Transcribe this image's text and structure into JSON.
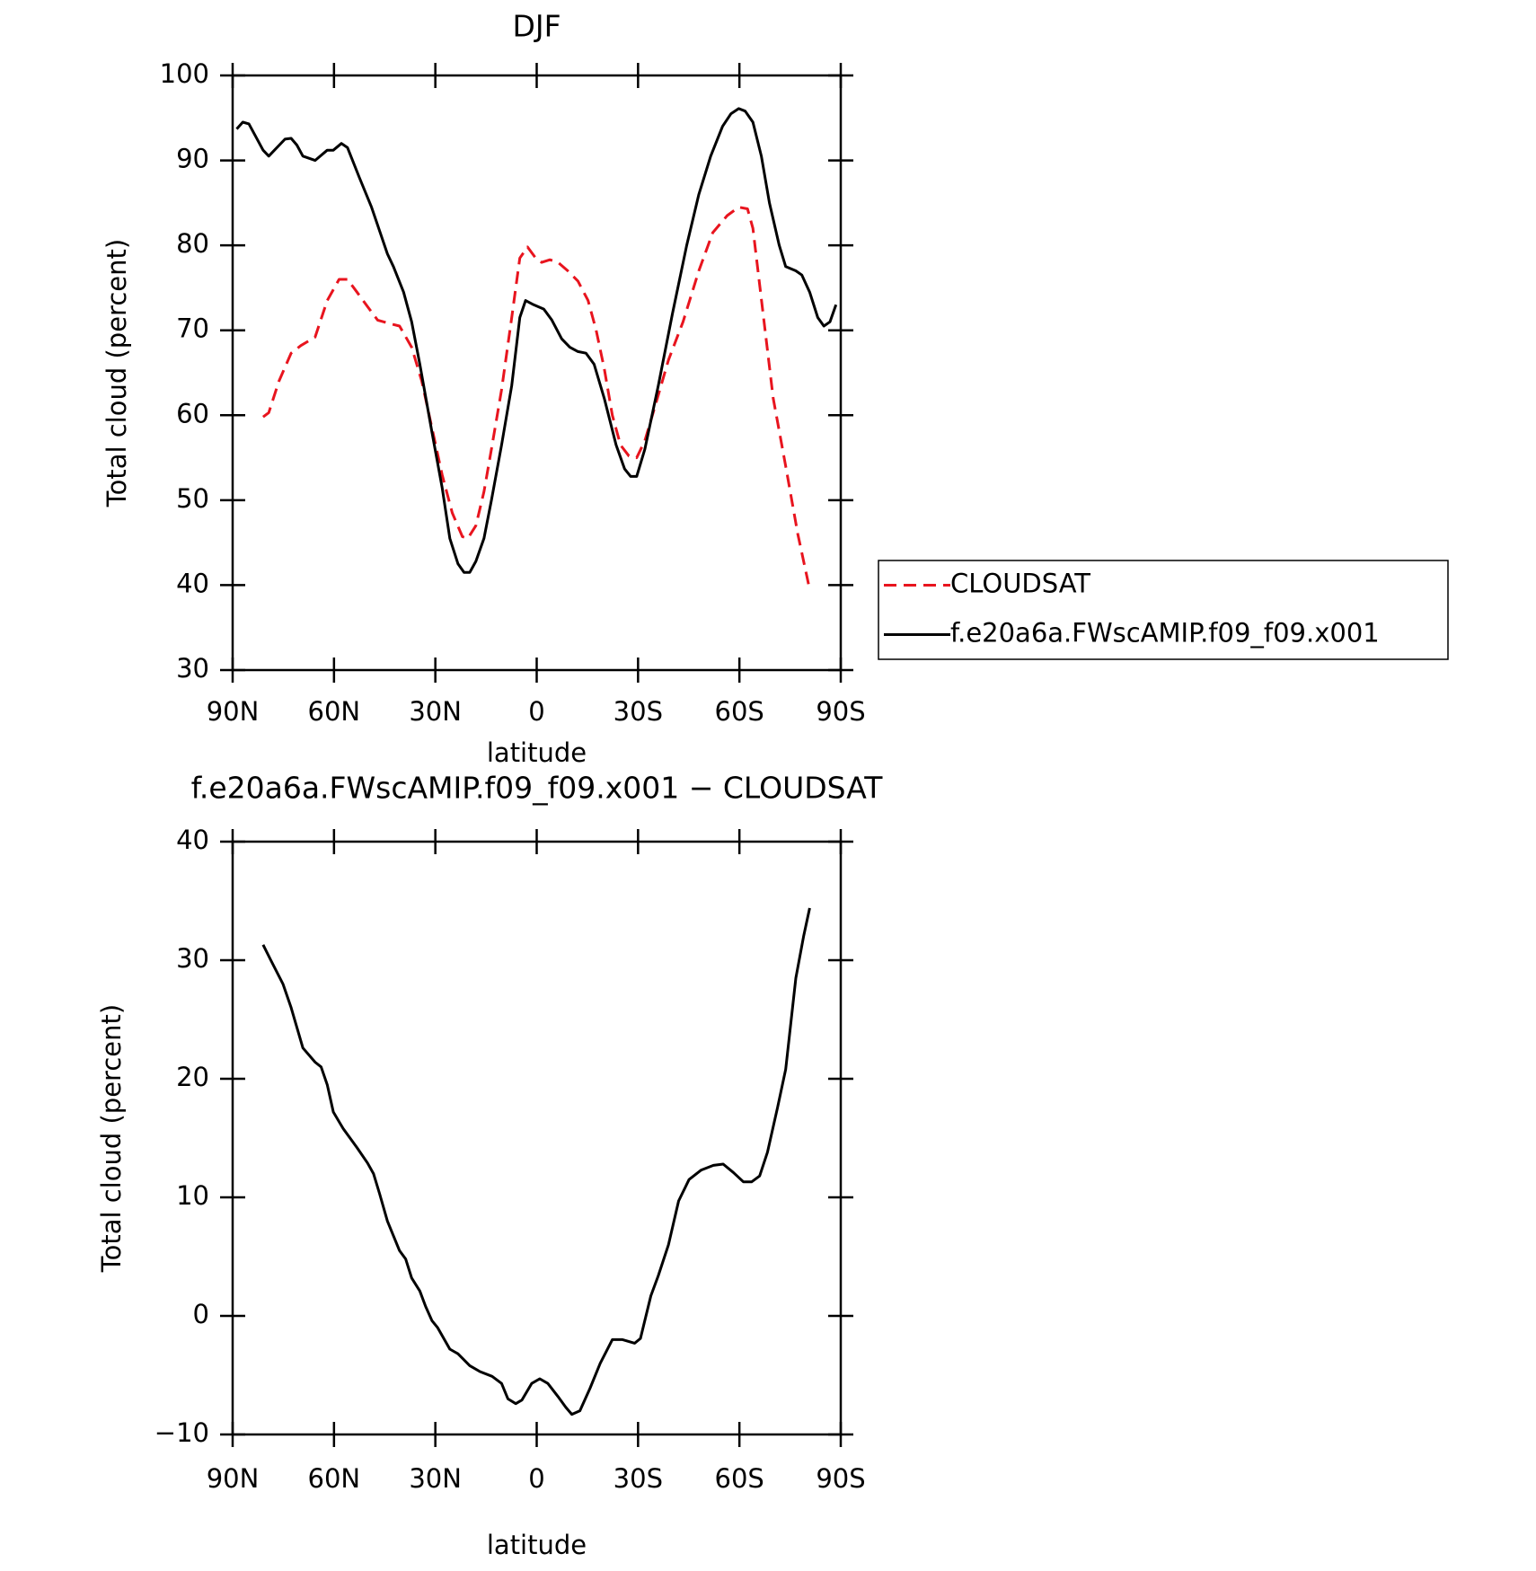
{
  "chart_data": [
    {
      "type": "line",
      "title": "DJF",
      "xlabel": "latitude",
      "ylabel": "Total cloud (percent)",
      "xlim": [
        90,
        -90
      ],
      "xticks": [
        {
          "value": 90,
          "label": "90N"
        },
        {
          "value": 60,
          "label": "60N"
        },
        {
          "value": 30,
          "label": "30N"
        },
        0,
        {
          "value": -30,
          "label": "30S"
        },
        {
          "value": -60,
          "label": "60S"
        },
        {
          "value": -90,
          "label": "90S"
        }
      ],
      "ylim": [
        30,
        100
      ],
      "yticks": [
        30,
        40,
        50,
        60,
        70,
        80,
        90,
        100
      ],
      "legend": "outside-right",
      "series": [
        {
          "name": "CLOUDSAT",
          "color": "#e8141e",
          "dash": true,
          "x": [
            81,
            79.3,
            76.3,
            72.7,
            69.8,
            65.6,
            62,
            58.5,
            56,
            53.2,
            50.1,
            47.1,
            43.6,
            40.6,
            37,
            34,
            31,
            28,
            25,
            22,
            20.4,
            18,
            15.6,
            13.4,
            10.4,
            7.4,
            5,
            2.7,
            0.3,
            -1.5,
            -3.9,
            -6.3,
            -9.2,
            -12.2,
            -15.2,
            -17.6,
            -20,
            -22.4,
            -24.8,
            -27.3,
            -29.6,
            -32,
            -35,
            -39,
            -43.3,
            -48,
            -52.1,
            -56.4,
            -59.8,
            -62.4,
            -64,
            -67,
            -70,
            -73.7,
            -77.3,
            -80.8
          ],
          "values": [
            59.8,
            60.3,
            64,
            67.3,
            68.2,
            69.2,
            73.5,
            76,
            76,
            74.5,
            72.8,
            71.2,
            70.8,
            70.5,
            68,
            64,
            58.5,
            53,
            48.5,
            45.7,
            45.5,
            47,
            51,
            56,
            63,
            71.5,
            78.5,
            79.8,
            78.5,
            78,
            78.3,
            78,
            77,
            75.8,
            73.5,
            70,
            65.5,
            60,
            56.5,
            55.2,
            55,
            57,
            61,
            66.5,
            71,
            77,
            81.5,
            83.5,
            84.5,
            84.3,
            82,
            72,
            62,
            54,
            46,
            39.5
          ]
        },
        {
          "name": "f.e20a6a.FWscAMIP.f09_f09.x001",
          "color": "#000000",
          "dash": false,
          "x": [
            88.8,
            87,
            85.2,
            81,
            79.3,
            74.5,
            72.7,
            71,
            69.2,
            65.6,
            62,
            60.2,
            57.8,
            56,
            52.5,
            48.9,
            44.2,
            42.4,
            39.4,
            37,
            34.6,
            31,
            28,
            25.7,
            23.3,
            21.5,
            19.8,
            18,
            15.6,
            13.4,
            10.4,
            7.4,
            5,
            3.3,
            0.9,
            -2.1,
            -4.5,
            -7.4,
            -9.8,
            -12.2,
            -14.6,
            -17,
            -20,
            -23.5,
            -26,
            -27.8,
            -29.6,
            -32,
            -36,
            -40.2,
            -44.4,
            -48,
            -51.5,
            -55,
            -57.5,
            -59.8,
            -61.7,
            -64,
            -66.5,
            -68.9,
            -71.8,
            -73.7,
            -76.7,
            -78.5,
            -80.8,
            -83.2,
            -85,
            -86.8,
            -88.6
          ],
          "values": [
            93.7,
            94.5,
            94.3,
            91.2,
            90.5,
            92.5,
            92.6,
            91.8,
            90.5,
            90,
            91.2,
            91.2,
            92,
            91.5,
            88,
            84.5,
            79,
            77.5,
            74.5,
            71,
            66,
            58,
            51.5,
            45.5,
            42.5,
            41.5,
            41.5,
            42.8,
            45.5,
            50,
            56.5,
            63.5,
            71.5,
            73.5,
            73,
            72.5,
            71.2,
            69,
            68,
            67.5,
            67.3,
            66,
            62,
            56.5,
            53.7,
            52.8,
            52.8,
            56,
            63.5,
            72,
            80,
            86,
            90.5,
            94,
            95.5,
            96.1,
            95.8,
            94.5,
            90.5,
            85,
            80,
            77.5,
            77,
            76.5,
            74.5,
            71.5,
            70.5,
            71,
            73
          ]
        }
      ]
    },
    {
      "type": "line",
      "title": "f.e20a6a.FWscAMIP.f09_f09.x001 − CLOUDSAT",
      "xlabel": "latitude",
      "ylabel": "Total cloud (percent)",
      "xlim": [
        90,
        -90
      ],
      "xticks": [
        {
          "value": 90,
          "label": "90N"
        },
        {
          "value": 60,
          "label": "60N"
        },
        {
          "value": 30,
          "label": "30N"
        },
        0,
        {
          "value": -30,
          "label": "30S"
        },
        {
          "value": -60,
          "label": "60S"
        },
        {
          "value": -90,
          "label": "90S"
        }
      ],
      "ylim": [
        -10,
        40
      ],
      "yticks": [
        {
          "value": -10,
          "label": "−10"
        },
        0,
        10,
        20,
        30,
        40
      ],
      "series": [
        {
          "color": "#000000",
          "dash": false,
          "x": [
            81,
            78.7,
            75.1,
            72.7,
            69.2,
            65.6,
            63.8,
            62,
            60.2,
            57.3,
            53.2,
            50.1,
            48.3,
            46.5,
            44.2,
            40.6,
            38.8,
            37,
            34.6,
            32.9,
            31,
            29.3,
            25.7,
            23.3,
            19.8,
            16.8,
            13.2,
            10.4,
            8.5,
            6.2,
            4.4,
            1.5,
            -0.9,
            -3.3,
            -6.3,
            -8.6,
            -10.4,
            -12.8,
            -15.8,
            -18.8,
            -22.4,
            -25.4,
            -29,
            -30.7,
            -33.8,
            -36,
            -39,
            -42,
            -45.1,
            -48.7,
            -52.3,
            -55.2,
            -58.2,
            -61.2,
            -63.6,
            -66,
            -68.3,
            -71.3,
            -73.7,
            -76.7,
            -79,
            -80.8
          ],
          "values": [
            31.3,
            30,
            28,
            26,
            22.6,
            21.4,
            21,
            19.5,
            17.2,
            15.8,
            14.2,
            12.9,
            12,
            10.3,
            8,
            5.5,
            4.8,
            3.2,
            2.1,
            0.8,
            -0.4,
            -1,
            -2.8,
            -3.2,
            -4.2,
            -4.7,
            -5.1,
            -5.7,
            -7,
            -7.4,
            -7.1,
            -5.7,
            -5.3,
            -5.7,
            -6.8,
            -7.7,
            -8.3,
            -8,
            -6.1,
            -4,
            -2,
            -2,
            -2.3,
            -1.9,
            1.7,
            3.4,
            6,
            9.7,
            11.5,
            12.3,
            12.7,
            12.8,
            12.1,
            11.3,
            11.3,
            11.8,
            13.8,
            17.6,
            20.8,
            28.5,
            32,
            34.4
          ]
        }
      ]
    }
  ]
}
